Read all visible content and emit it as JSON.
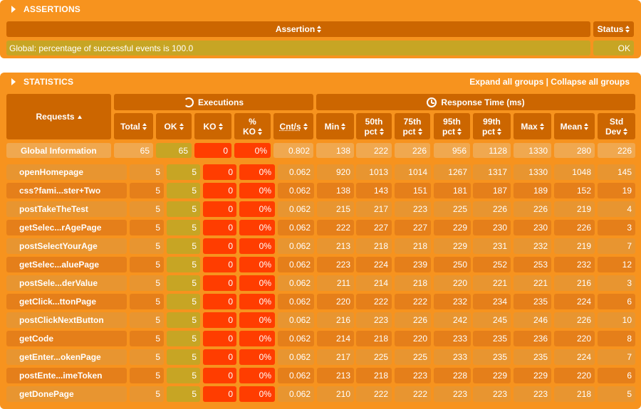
{
  "assertions": {
    "title": "ASSERTIONS",
    "header_assertion": "Assertion",
    "header_status": "Status",
    "row_text": "Global: percentage of successful events is 100.0",
    "row_status": "OK"
  },
  "statistics": {
    "title": "STATISTICS",
    "expand_label": "Expand all groups",
    "separator": "|",
    "collapse_label": "Collapse all groups",
    "group_executions": "Executions",
    "group_response": "Response Time (ms)",
    "headers": {
      "requests": "Requests",
      "total": "Total",
      "ok": "OK",
      "ko": "KO",
      "pct_ko_1": "%",
      "pct_ko_2": "KO",
      "cnts": "Cnt/s",
      "min": "Min",
      "p50_1": "50th",
      "p50_2": "pct",
      "p75_1": "75th",
      "p75_2": "pct",
      "p95_1": "95th",
      "p95_2": "pct",
      "p99_1": "99th",
      "p99_2": "pct",
      "max": "Max",
      "mean": "Mean",
      "std_1": "Std",
      "std_2": "Dev"
    },
    "global": [
      "Global Information",
      "65",
      "65",
      "0",
      "0%",
      "0.802",
      "138",
      "222",
      "226",
      "956",
      "1128",
      "1330",
      "280",
      "226"
    ],
    "rows": [
      [
        "openHomepage",
        "5",
        "5",
        "0",
        "0%",
        "0.062",
        "920",
        "1013",
        "1014",
        "1267",
        "1317",
        "1330",
        "1048",
        "145"
      ],
      [
        "css?fami...ster+Two",
        "5",
        "5",
        "0",
        "0%",
        "0.062",
        "138",
        "143",
        "151",
        "181",
        "187",
        "189",
        "152",
        "19"
      ],
      [
        "postTakeTheTest",
        "5",
        "5",
        "0",
        "0%",
        "0.062",
        "215",
        "217",
        "223",
        "225",
        "226",
        "226",
        "219",
        "4"
      ],
      [
        "getSelec...rAgePage",
        "5",
        "5",
        "0",
        "0%",
        "0.062",
        "222",
        "227",
        "227",
        "229",
        "230",
        "230",
        "226",
        "3"
      ],
      [
        "postSelectYourAge",
        "5",
        "5",
        "0",
        "0%",
        "0.062",
        "213",
        "218",
        "218",
        "229",
        "231",
        "232",
        "219",
        "7"
      ],
      [
        "getSelec...aluePage",
        "5",
        "5",
        "0",
        "0%",
        "0.062",
        "223",
        "224",
        "239",
        "250",
        "252",
        "253",
        "232",
        "12"
      ],
      [
        "postSele...derValue",
        "5",
        "5",
        "0",
        "0%",
        "0.062",
        "211",
        "214",
        "218",
        "220",
        "221",
        "221",
        "216",
        "3"
      ],
      [
        "getClick...ttonPage",
        "5",
        "5",
        "0",
        "0%",
        "0.062",
        "220",
        "222",
        "222",
        "232",
        "234",
        "235",
        "224",
        "6"
      ],
      [
        "postClickNextButton",
        "5",
        "5",
        "0",
        "0%",
        "0.062",
        "216",
        "223",
        "226",
        "242",
        "245",
        "246",
        "226",
        "10"
      ],
      [
        "getCode",
        "5",
        "5",
        "0",
        "0%",
        "0.062",
        "214",
        "218",
        "220",
        "233",
        "235",
        "236",
        "220",
        "8"
      ],
      [
        "getEnter...okenPage",
        "5",
        "5",
        "0",
        "0%",
        "0.062",
        "217",
        "225",
        "225",
        "233",
        "235",
        "235",
        "224",
        "7"
      ],
      [
        "postEnte...imeToken",
        "5",
        "5",
        "0",
        "0%",
        "0.062",
        "213",
        "218",
        "223",
        "228",
        "229",
        "229",
        "220",
        "6"
      ],
      [
        "getDonePage",
        "5",
        "5",
        "0",
        "0%",
        "0.062",
        "210",
        "222",
        "222",
        "223",
        "223",
        "223",
        "218",
        "5"
      ]
    ]
  },
  "colors": {
    "panel": "#f7931e",
    "header": "#cc6600",
    "row_even": "#e89530",
    "row_odd": "#e57f1a",
    "ok_cell": "#c7a524",
    "ko_cell": "#ff3d00",
    "global_row": "#f0a84f"
  }
}
